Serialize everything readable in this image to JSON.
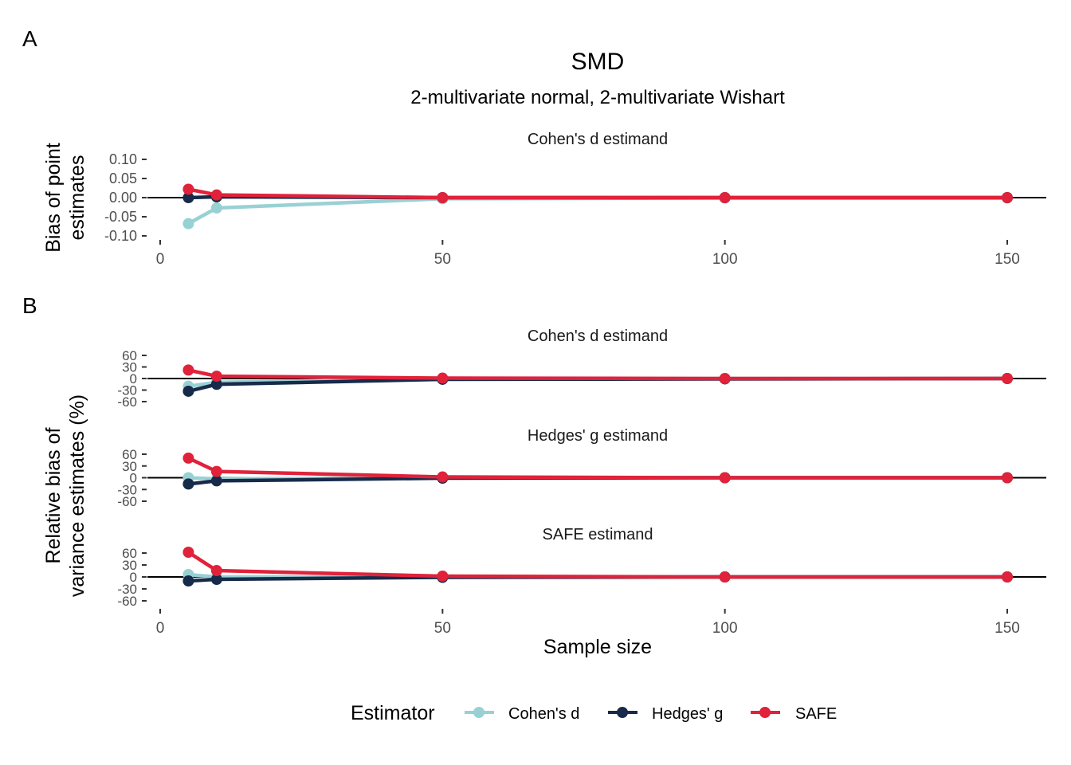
{
  "figure": {
    "panel_labels": [
      "A",
      "B"
    ],
    "title": "SMD",
    "subtitle": "2-multivariate normal, 2-multivariate Wishart"
  },
  "colors": {
    "cohens_d": "#98D1D4",
    "hedges_g": "#172A4A",
    "safe": "#E0223A",
    "axis": "#000000",
    "tick_text": "#4D4D4D"
  },
  "legend": {
    "title": "Estimator",
    "items": [
      "Cohen's d",
      "Hedges' g",
      "SAFE"
    ]
  },
  "chart_data": [
    {
      "type": "line",
      "panel": "A",
      "facet_label": "Cohen's d estimand",
      "ylabel_lines": [
        "Bias of point",
        "estimates"
      ],
      "xlabel": "",
      "x": [
        5,
        10,
        50,
        100,
        150
      ],
      "x_ticks": [
        0,
        50,
        100,
        150
      ],
      "xlim": [
        0,
        150
      ],
      "y_ticks": [
        -0.1,
        -0.05,
        0.0,
        0.05,
        0.1
      ],
      "y_tick_labels": [
        "-0.10",
        "-0.05",
        "0.00",
        "0.05",
        "0.10"
      ],
      "ylim": [
        -0.1,
        0.1
      ],
      "series": [
        {
          "name": "Cohen's d",
          "values": [
            -0.068,
            -0.027,
            -0.003,
            -0.001,
            -0.001
          ]
        },
        {
          "name": "Hedges' g",
          "values": [
            0.0,
            0.002,
            0.0,
            0.0,
            0.0
          ]
        },
        {
          "name": "SAFE",
          "values": [
            0.022,
            0.007,
            0.0,
            0.0,
            0.0
          ]
        }
      ]
    },
    {
      "type": "line",
      "panel": "B",
      "facet_label": "Cohen's d estimand",
      "ylabel_lines": [
        "Relative bias of",
        "variance estimates (%)"
      ],
      "xlabel": "",
      "x": [
        5,
        10,
        50,
        100,
        150
      ],
      "y_ticks": [
        -60,
        -30,
        0,
        30,
        60
      ],
      "y_tick_labels": [
        "-60",
        "-30",
        "0",
        "30",
        "60"
      ],
      "ylim": [
        -60,
        60
      ],
      "series": [
        {
          "name": "Cohen's d",
          "values": [
            -20,
            -10,
            -1,
            0,
            0
          ]
        },
        {
          "name": "Hedges' g",
          "values": [
            -33,
            -15,
            -2,
            -1,
            0
          ]
        },
        {
          "name": "SAFE",
          "values": [
            22,
            6,
            1,
            0,
            0
          ]
        }
      ]
    },
    {
      "type": "line",
      "panel": "B",
      "facet_label": "Hedges' g estimand",
      "xlabel": "",
      "x": [
        5,
        10,
        50,
        100,
        150
      ],
      "y_ticks": [
        -60,
        -30,
        0,
        30,
        60
      ],
      "y_tick_labels": [
        "-60",
        "-30",
        "0",
        "30",
        "60"
      ],
      "ylim": [
        -60,
        60
      ],
      "series": [
        {
          "name": "Cohen's d",
          "values": [
            0,
            -3,
            0,
            0,
            0
          ]
        },
        {
          "name": "Hedges' g",
          "values": [
            -16,
            -8,
            -1,
            0,
            0
          ]
        },
        {
          "name": "SAFE",
          "values": [
            50,
            16,
            2,
            0,
            0
          ]
        }
      ]
    },
    {
      "type": "line",
      "panel": "B",
      "facet_label": "SAFE estimand",
      "xlabel": "Sample size",
      "x": [
        5,
        10,
        50,
        100,
        150
      ],
      "x_ticks": [
        0,
        50,
        100,
        150
      ],
      "xlim": [
        0,
        150
      ],
      "y_ticks": [
        -60,
        -30,
        0,
        30,
        60
      ],
      "y_tick_labels": [
        "-60",
        "-30",
        "0",
        "30",
        "60"
      ],
      "ylim": [
        -60,
        60
      ],
      "series": [
        {
          "name": "Cohen's d",
          "values": [
            6,
            0,
            0,
            0,
            0
          ]
        },
        {
          "name": "Hedges' g",
          "values": [
            -10,
            -6,
            -1,
            0,
            0
          ]
        },
        {
          "name": "SAFE",
          "values": [
            62,
            16,
            2,
            0,
            0
          ]
        }
      ]
    }
  ]
}
